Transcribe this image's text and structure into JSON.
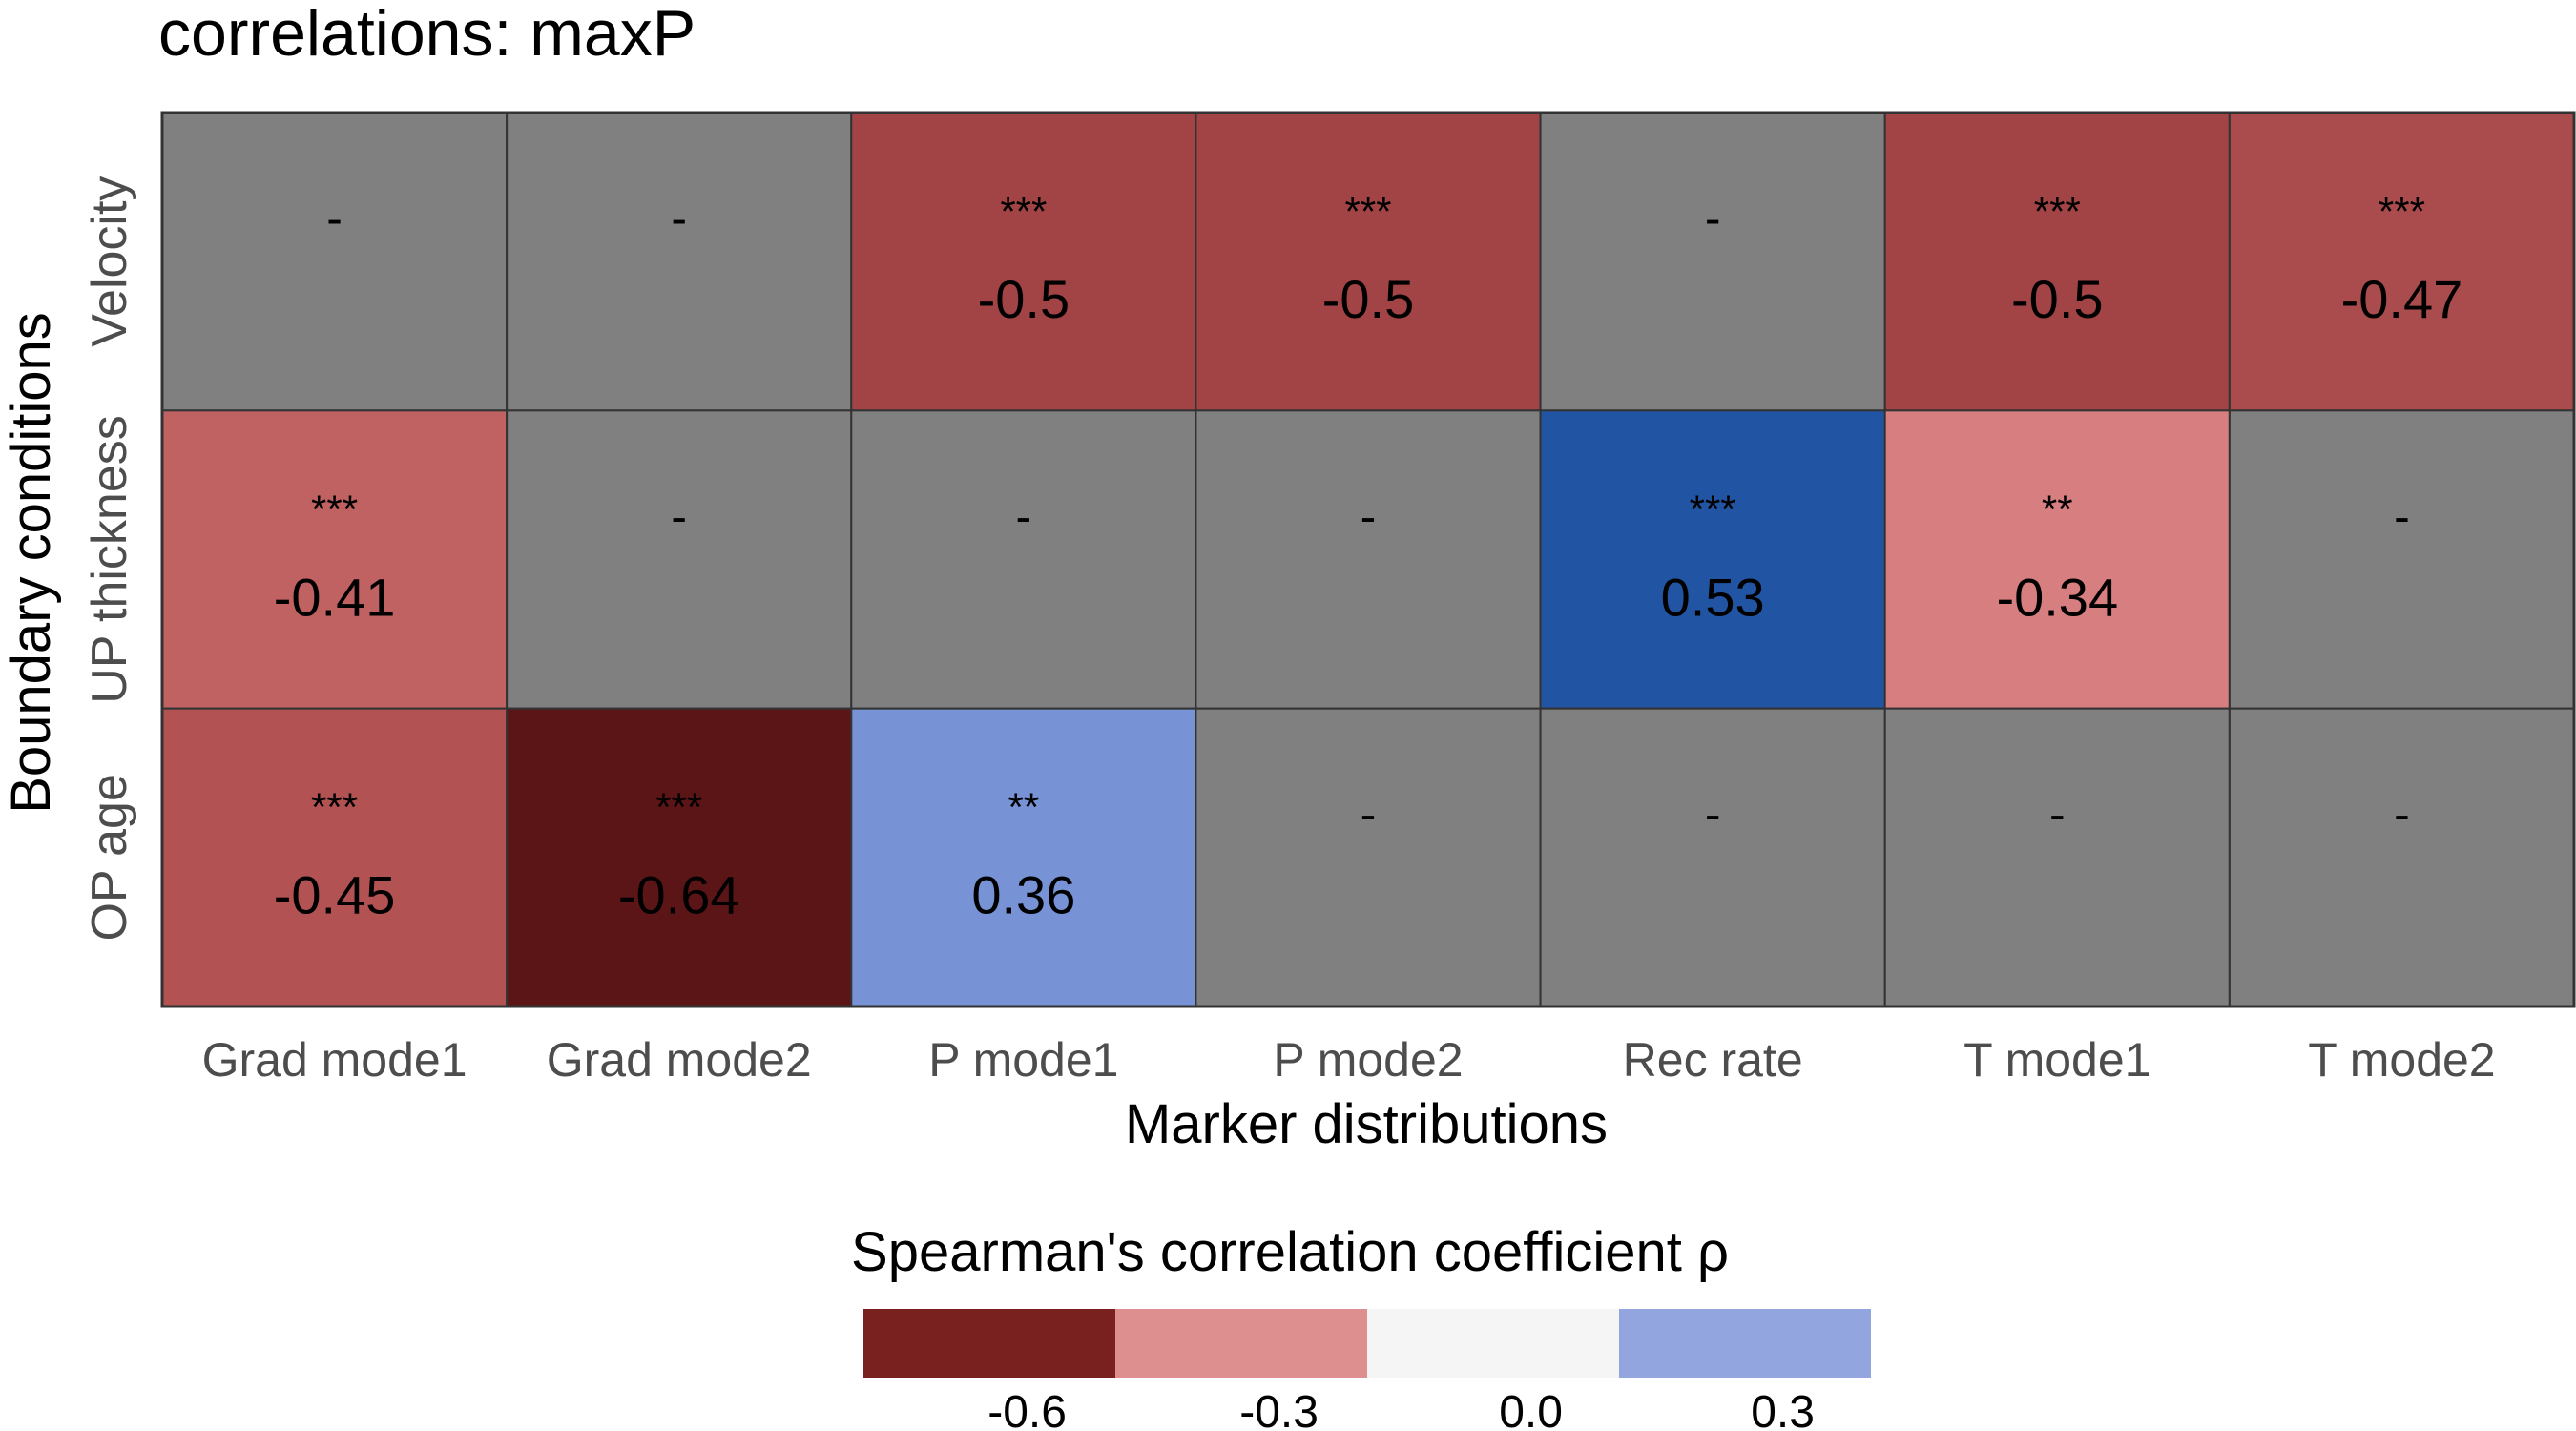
{
  "chart_data": {
    "type": "heatmap",
    "title": "correlations: maxP",
    "xlabel": "Marker distributions",
    "ylabel": "Boundary conditions",
    "x_categories": [
      "Grad mode1",
      "Grad mode2",
      "P mode1",
      "P mode2",
      "Rec rate",
      "T mode1",
      "T mode2"
    ],
    "y_categories": [
      "Velocity",
      "UP thickness",
      "OP age"
    ],
    "cells": [
      [
        {
          "value": null,
          "sig": "-",
          "label": ""
        },
        {
          "value": null,
          "sig": "-",
          "label": ""
        },
        {
          "value": -0.5,
          "sig": "***",
          "label": "-0.5"
        },
        {
          "value": -0.5,
          "sig": "***",
          "label": "-0.5"
        },
        {
          "value": null,
          "sig": "-",
          "label": ""
        },
        {
          "value": -0.5,
          "sig": "***",
          "label": "-0.5"
        },
        {
          "value": -0.47,
          "sig": "***",
          "label": "-0.47"
        }
      ],
      [
        {
          "value": -0.41,
          "sig": "***",
          "label": "-0.41"
        },
        {
          "value": null,
          "sig": "-",
          "label": ""
        },
        {
          "value": null,
          "sig": "-",
          "label": ""
        },
        {
          "value": null,
          "sig": "-",
          "label": ""
        },
        {
          "value": 0.53,
          "sig": "***",
          "label": "0.53"
        },
        {
          "value": -0.34,
          "sig": "**",
          "label": "-0.34"
        },
        {
          "value": null,
          "sig": "-",
          "label": ""
        }
      ],
      [
        {
          "value": -0.45,
          "sig": "***",
          "label": "-0.45"
        },
        {
          "value": -0.64,
          "sig": "***",
          "label": "-0.64"
        },
        {
          "value": 0.36,
          "sig": "**",
          "label": "0.36"
        },
        {
          "value": null,
          "sig": "-",
          "label": ""
        },
        {
          "value": null,
          "sig": "-",
          "label": ""
        },
        {
          "value": null,
          "sig": "-",
          "label": ""
        },
        {
          "value": null,
          "sig": "-",
          "label": ""
        }
      ]
    ],
    "colors": {
      "non_significant": "#808080",
      "cell_colors": [
        [
          "#808080",
          "#808080",
          "#a24445",
          "#a24445",
          "#808080",
          "#a24445",
          "#aa4c4d"
        ],
        [
          "#c06262",
          "#808080",
          "#808080",
          "#808080",
          "#2254a4",
          "#d77f80",
          "#808080"
        ],
        [
          "#b25253",
          "#5c1517",
          "#7793d6",
          "#808080",
          "#808080",
          "#808080",
          "#808080"
        ]
      ]
    },
    "legend": {
      "title": "Spearman's correlation coefficient ρ",
      "placement": "bottom",
      "bins": [
        {
          "color": "#79211f"
        },
        {
          "color": "#dd8e8e"
        },
        {
          "color": "#f5f5f5"
        },
        {
          "color": "#93a5de"
        }
      ],
      "tick_labels": [
        "-0.6",
        "-0.3",
        "0.0",
        "0.3"
      ]
    }
  }
}
